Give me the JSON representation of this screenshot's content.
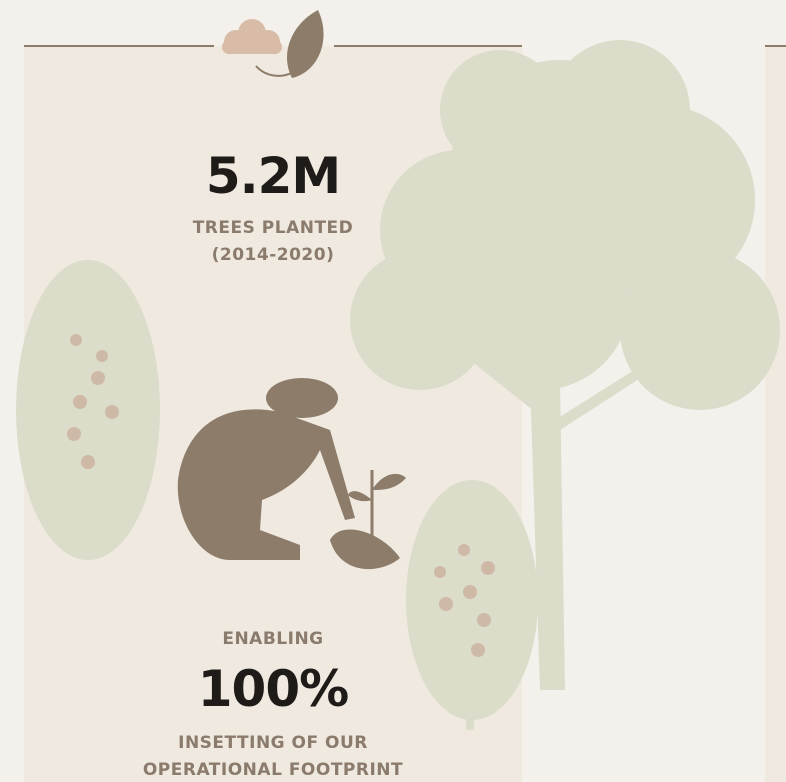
{
  "stats": [
    {
      "value": "5.2M",
      "label_lines": [
        "TREES PLANTED",
        "(2014-2020)"
      ]
    },
    {
      "prefix": "ENABLING",
      "value": "100%",
      "label_lines": [
        "INSETTING OF OUR",
        "OPERATIONAL FOOTPRINT"
      ]
    }
  ]
}
